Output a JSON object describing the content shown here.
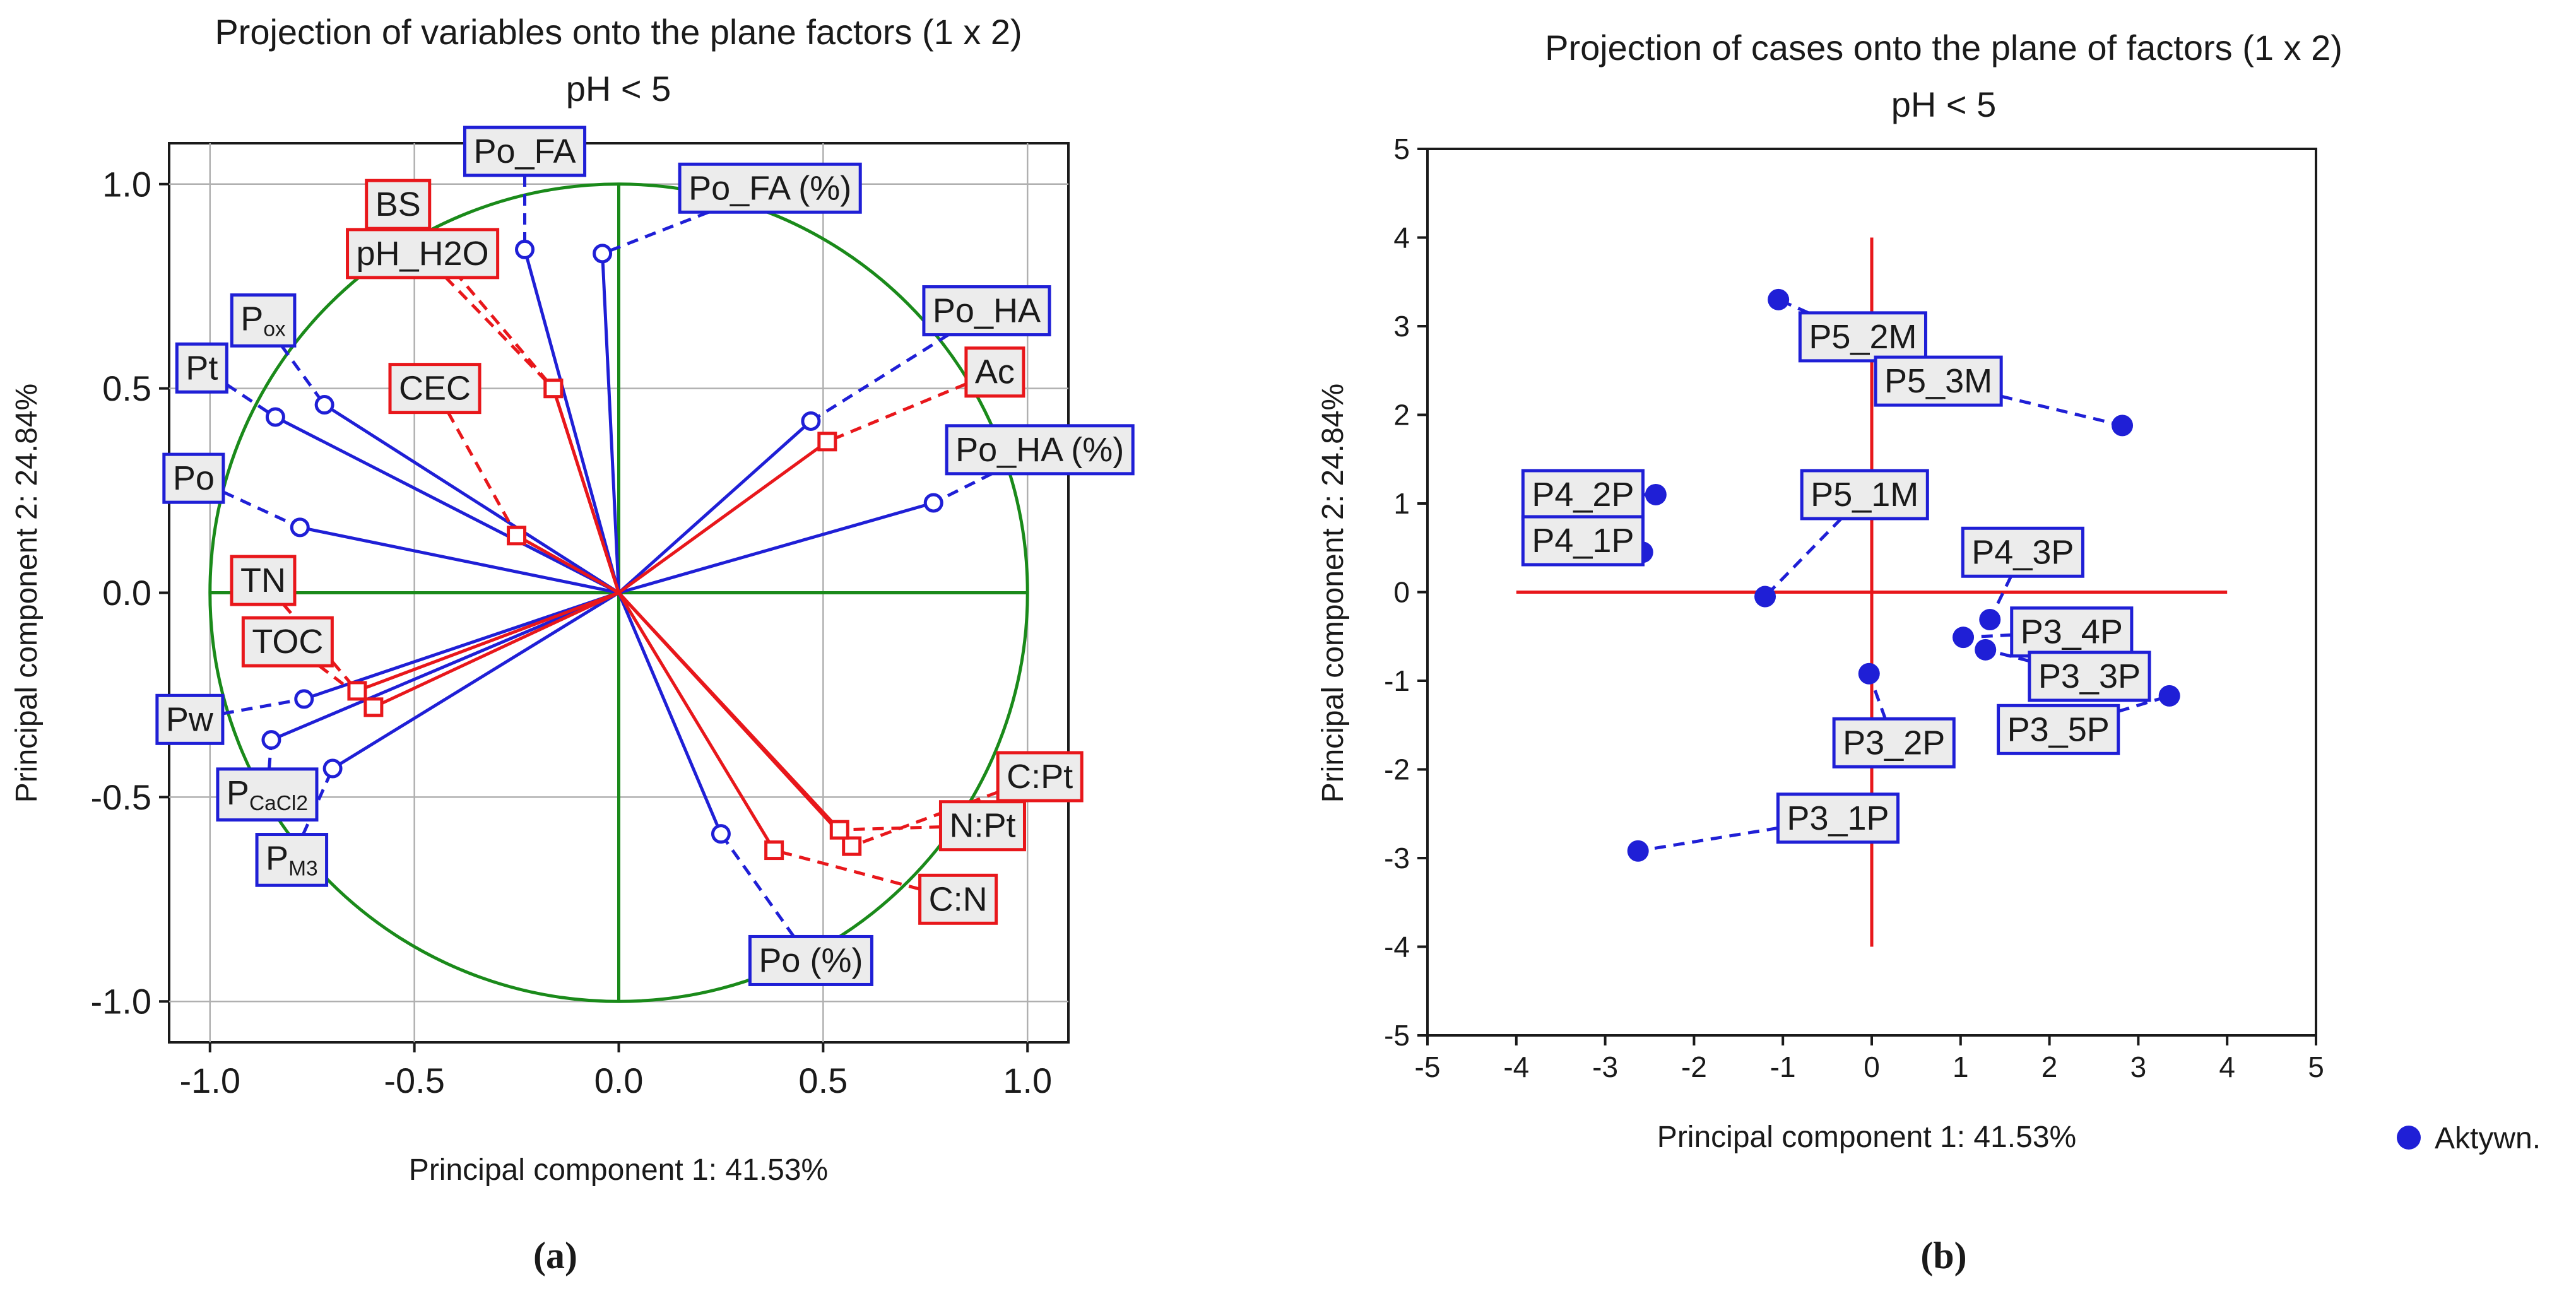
{
  "colors": {
    "blue": "#1f1fd6",
    "red": "#e8171b",
    "green": "#1a8a1a",
    "grid": "#b0b0b0",
    "label_fill": "#ececec",
    "axis_red": "#e8171b"
  },
  "chart_data": [
    {
      "id": "a",
      "type": "scatter",
      "subtype": "pca-correlation-circle",
      "title": "Projection of variables onto the plane factors (1 x 2)",
      "subtitle": "pH < 5",
      "xlabel": "Principal component 1: 41.53%",
      "ylabel": "Principal component 2: 24.84%",
      "xlim": [
        -1.1,
        1.1
      ],
      "ylim": [
        -1.1,
        1.1
      ],
      "xticks": [
        -1.0,
        -0.5,
        0.0,
        0.5,
        1.0
      ],
      "yticks": [
        -1.0,
        -0.5,
        0.0,
        0.5,
        1.0
      ],
      "xtick_labels": [
        "-1.0",
        "-0.5",
        "0.0",
        "0.5",
        "1.0"
      ],
      "ytick_labels": [
        "-1.0",
        "-0.5",
        "0.0",
        "0.5",
        "1.0"
      ],
      "grid": true,
      "unit_circle": true,
      "series": [
        {
          "group": "active",
          "color": "blue",
          "marker": "circle",
          "points": [
            {
              "label": "Po_FA",
              "sub": "",
              "x": -0.23,
              "y": 0.84,
              "lx": -0.23,
              "ly": 1.08
            },
            {
              "label": "Po_FA (%)",
              "sub": "",
              "x": -0.04,
              "y": 0.83,
              "lx": 0.37,
              "ly": 0.99
            },
            {
              "label": "Po_HA",
              "sub": "",
              "x": 0.47,
              "y": 0.42,
              "lx": 0.9,
              "ly": 0.69
            },
            {
              "label": "Po_HA (%)",
              "sub": "",
              "x": 0.77,
              "y": 0.22,
              "lx": 1.03,
              "ly": 0.35
            },
            {
              "label": "P",
              "sub": "ox",
              "x": -0.72,
              "y": 0.46,
              "lx": -0.87,
              "ly": 0.67
            },
            {
              "label": "Pt",
              "sub": "",
              "x": -0.84,
              "y": 0.43,
              "lx": -1.02,
              "ly": 0.55
            },
            {
              "label": "Po",
              "sub": "",
              "x": -0.78,
              "y": 0.16,
              "lx": -1.04,
              "ly": 0.28
            },
            {
              "label": "Pw",
              "sub": "",
              "x": -0.77,
              "y": -0.26,
              "lx": -1.05,
              "ly": -0.31
            },
            {
              "label": "P",
              "sub": "CaCl2",
              "x": -0.85,
              "y": -0.36,
              "lx": -0.86,
              "ly": -0.49
            },
            {
              "label": "P",
              "sub": "M3",
              "x": -0.7,
              "y": -0.43,
              "lx": -0.8,
              "ly": -0.65
            },
            {
              "label": "Po (%)",
              "sub": "",
              "x": 0.25,
              "y": -0.59,
              "lx": 0.47,
              "ly": -0.9
            }
          ]
        },
        {
          "group": "supplementary",
          "color": "red",
          "marker": "square",
          "points": [
            {
              "label": "BS",
              "sub": "",
              "x": -0.16,
              "y": 0.5,
              "lx": -0.54,
              "ly": 0.95
            },
            {
              "label": "pH_H2O",
              "sub": "",
              "x": -0.16,
              "y": 0.5,
              "lx": -0.48,
              "ly": 0.83
            },
            {
              "label": "CEC",
              "sub": "",
              "x": -0.25,
              "y": 0.14,
              "lx": -0.45,
              "ly": 0.5
            },
            {
              "label": "Ac",
              "sub": "",
              "x": 0.51,
              "y": 0.37,
              "lx": 0.92,
              "ly": 0.54
            },
            {
              "label": "TN",
              "sub": "",
              "x": -0.64,
              "y": -0.24,
              "lx": -0.87,
              "ly": 0.03
            },
            {
              "label": "TOC",
              "sub": "",
              "x": -0.6,
              "y": -0.28,
              "lx": -0.81,
              "ly": -0.12
            },
            {
              "label": "C:Pt",
              "sub": "",
              "x": 0.57,
              "y": -0.62,
              "lx": 1.03,
              "ly": -0.45
            },
            {
              "label": "N:Pt",
              "sub": "",
              "x": 0.54,
              "y": -0.58,
              "lx": 0.89,
              "ly": -0.57
            },
            {
              "label": "C:N",
              "sub": "",
              "x": 0.38,
              "y": -0.63,
              "lx": 0.83,
              "ly": -0.75
            }
          ]
        }
      ],
      "caption": "(a)"
    },
    {
      "id": "b",
      "type": "scatter",
      "title": "Projection of cases onto the plane of factors (1 x 2)",
      "subtitle": "pH < 5",
      "xlabel": "Principal component 1: 41.53%",
      "ylabel": "Principal component 2: 24.84%",
      "xlim": [
        -5,
        5
      ],
      "ylim": [
        -5,
        5
      ],
      "xticks": [
        -5,
        -4,
        -3,
        -2,
        -1,
        0,
        1,
        2,
        3,
        4,
        5
      ],
      "yticks": [
        -5,
        -4,
        -3,
        -2,
        -1,
        0,
        1,
        2,
        3,
        4,
        5
      ],
      "xtick_labels": [
        "-5",
        "-4",
        "-3",
        "-2",
        "-1",
        "0",
        "1",
        "2",
        "3",
        "4",
        "5"
      ],
      "ytick_labels": [
        "-5",
        "-4",
        "-3",
        "-2",
        "-1",
        "0",
        "1",
        "2",
        "3",
        "4",
        "5"
      ],
      "grid": false,
      "cross_axes_range": [
        -4,
        4
      ],
      "legend": {
        "entries": [
          "Aktywn."
        ],
        "position": "bottom-right"
      },
      "points": [
        {
          "label": "P5_2M",
          "x": -1.05,
          "y": 3.3,
          "lx": -0.1,
          "ly": 2.88
        },
        {
          "label": "P5_3M",
          "x": 2.82,
          "y": 1.88,
          "lx": 0.75,
          "ly": 2.38
        },
        {
          "label": "P4_2P",
          "x": -2.43,
          "y": 1.1,
          "lx": -3.25,
          "ly": 1.1
        },
        {
          "label": "P4_1P",
          "x": -2.58,
          "y": 0.45,
          "lx": -3.25,
          "ly": 0.58
        },
        {
          "label": "P5_1M",
          "x": -1.2,
          "y": -0.05,
          "lx": -0.08,
          "ly": 1.1
        },
        {
          "label": "P4_3P",
          "x": 1.33,
          "y": -0.31,
          "lx": 1.7,
          "ly": 0.45
        },
        {
          "label": "P3_4P",
          "x": 1.03,
          "y": -0.51,
          "lx": 2.25,
          "ly": -0.45
        },
        {
          "label": "P3_3P",
          "x": 1.28,
          "y": -0.65,
          "lx": 2.45,
          "ly": -0.95
        },
        {
          "label": "P3_5P",
          "x": 3.35,
          "y": -1.17,
          "lx": 2.1,
          "ly": -1.55
        },
        {
          "label": "P3_2P",
          "x": -0.03,
          "y": -0.92,
          "lx": 0.25,
          "ly": -1.7
        },
        {
          "label": "P3_1P",
          "x": -2.63,
          "y": -2.92,
          "lx": -0.38,
          "ly": -2.55
        }
      ],
      "caption": "(b)"
    }
  ]
}
